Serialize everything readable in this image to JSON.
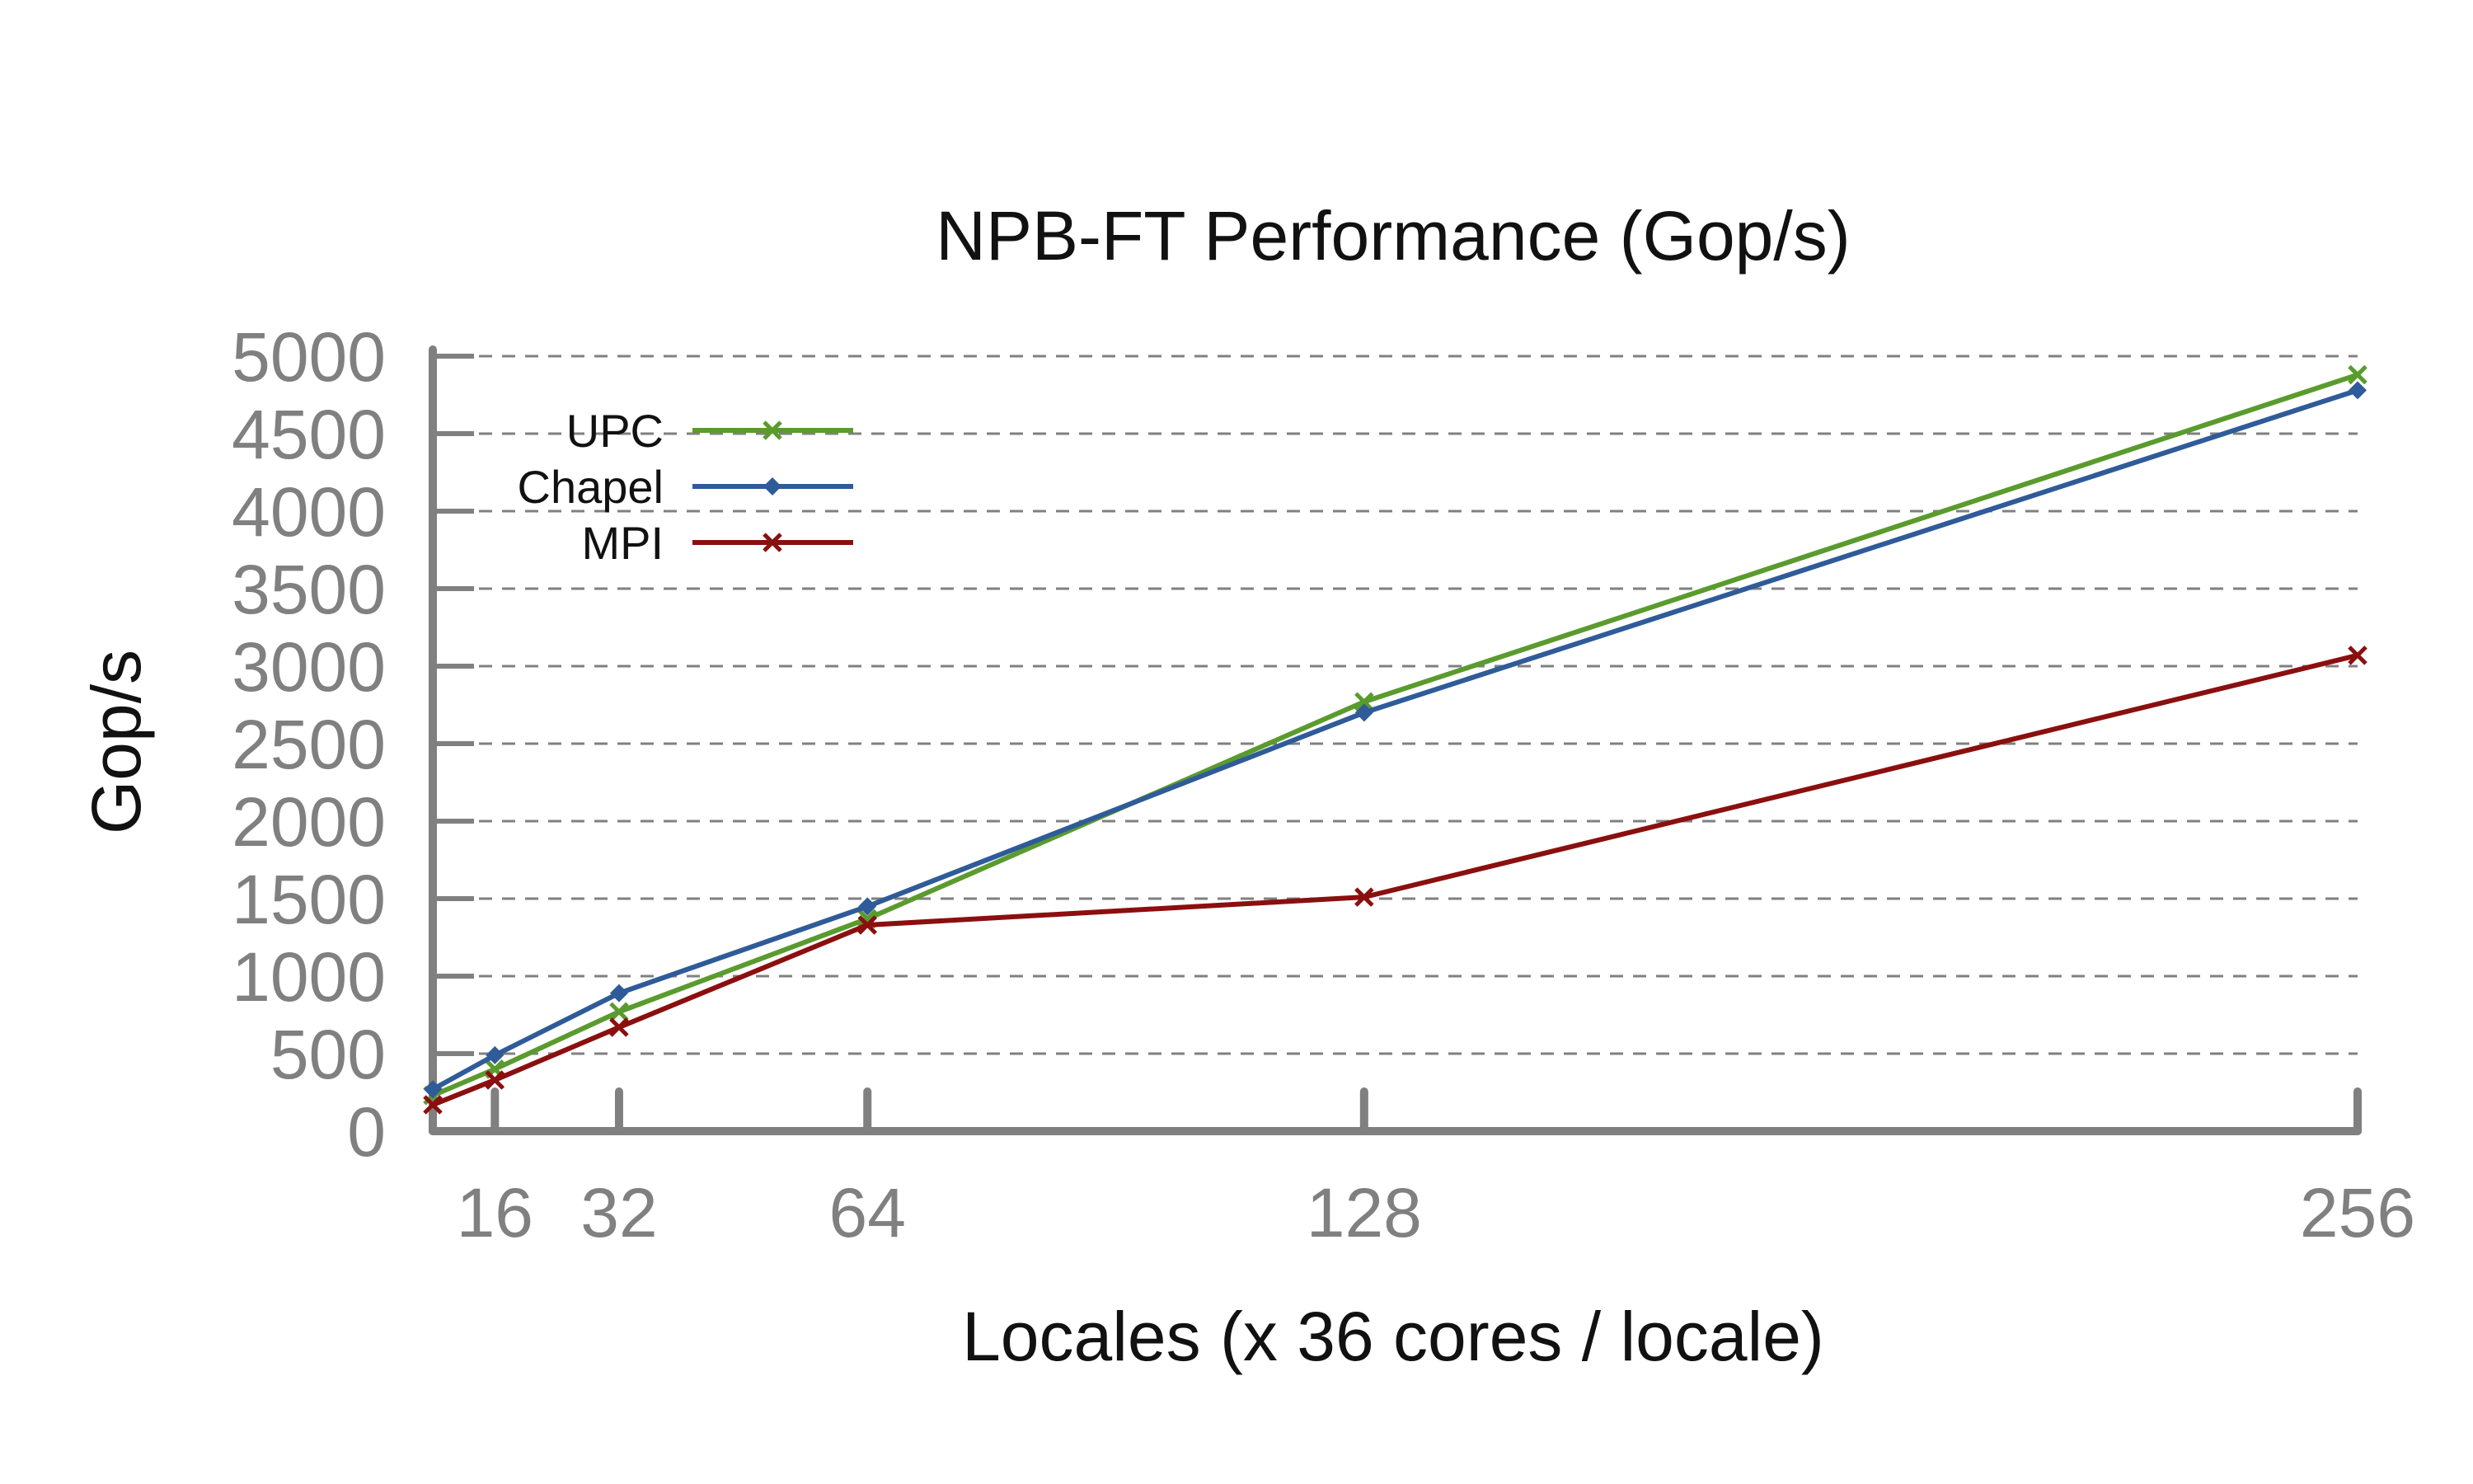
{
  "chart_data": {
    "type": "line",
    "title": "NPB-FT Performance (Gop/s)",
    "xlabel": "Locales (x 36 cores / locale)",
    "ylabel": "Gop/s",
    "x": [
      8,
      16,
      32,
      64,
      128,
      256
    ],
    "x_ticks": [
      16,
      32,
      64,
      128,
      256
    ],
    "xlim": [
      8,
      256
    ],
    "ylim": [
      0,
      5000
    ],
    "y_ticks": [
      0,
      500,
      1000,
      1500,
      2000,
      2500,
      3000,
      3500,
      4000,
      4500,
      5000
    ],
    "grid": "horizontal dashed",
    "legend_position": "top-left",
    "series": [
      {
        "name": "UPC",
        "color": "#5a9b2e",
        "marker": "x",
        "values": [
          230,
          400,
          770,
          1370,
          2770,
          4880
        ]
      },
      {
        "name": "Chapel",
        "color": "#2f5b99",
        "marker": "diamond",
        "values": [
          270,
          490,
          890,
          1450,
          2700,
          4780
        ]
      },
      {
        "name": "MPI",
        "color": "#8b0f0f",
        "marker": "x",
        "values": [
          170,
          330,
          670,
          1330,
          1510,
          3070
        ]
      }
    ]
  }
}
